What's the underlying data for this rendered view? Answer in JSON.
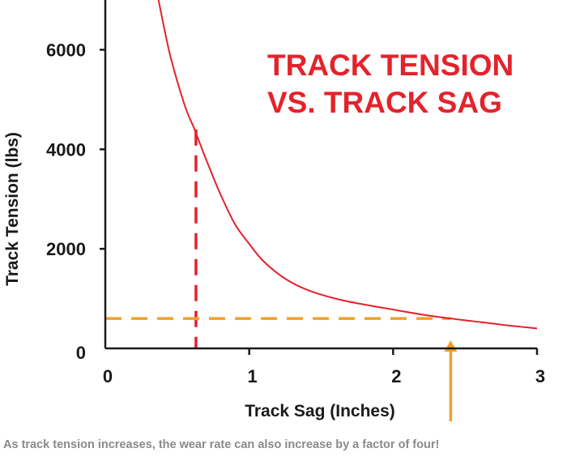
{
  "chart_data": {
    "type": "line",
    "title_lines": [
      "TRACK TENSION",
      "VS. TRACK SAG"
    ],
    "xlabel": "Track Sag (Inches)",
    "ylabel": "Track Tension (lbs)",
    "xlim": [
      0,
      3
    ],
    "ylim": [
      0,
      7000
    ],
    "x_ticks": [
      0,
      1,
      2,
      3
    ],
    "x_tick_labels": [
      "0",
      "1",
      "2",
      "3"
    ],
    "y_ticks": [
      0,
      2000,
      4000,
      6000
    ],
    "y_tick_labels": [
      "0",
      "2000",
      "4000",
      "6000"
    ],
    "grid": false,
    "legend": "none",
    "series": [
      {
        "x": [
          0.37,
          0.45,
          0.55,
          0.62,
          0.7,
          0.8,
          0.9,
          1.0,
          1.1,
          1.25,
          1.4,
          1.6,
          1.8,
          2.0,
          2.2,
          2.4,
          2.6,
          2.8,
          3.0
        ],
        "y": [
          7000,
          5900,
          4900,
          4400,
          3800,
          3100,
          2500,
          2100,
          1750,
          1400,
          1180,
          1000,
          880,
          780,
          680,
          600,
          530,
          460,
          400
        ],
        "color": "#e3232c"
      }
    ],
    "annotations": [
      {
        "kind": "vline-dashed",
        "x": 0.63,
        "y_from": 0,
        "y_to": 4400,
        "color": "#e3232c"
      },
      {
        "kind": "hline-dashed",
        "y": 600,
        "x_from": 0,
        "x_to": 2.4,
        "color": "#f3a02a"
      },
      {
        "kind": "arrow-up",
        "x": 2.4,
        "y_tip": 0,
        "color": "#f3a02a"
      }
    ]
  },
  "colors": {
    "title": "#e3232c",
    "curve": "#e3232c",
    "highlight": "#f3a02a",
    "axis": "#1a1a1a",
    "caption": "#8a8a8a"
  },
  "caption": "As track tension increases, the wear rate can also increase by a factor of four!"
}
